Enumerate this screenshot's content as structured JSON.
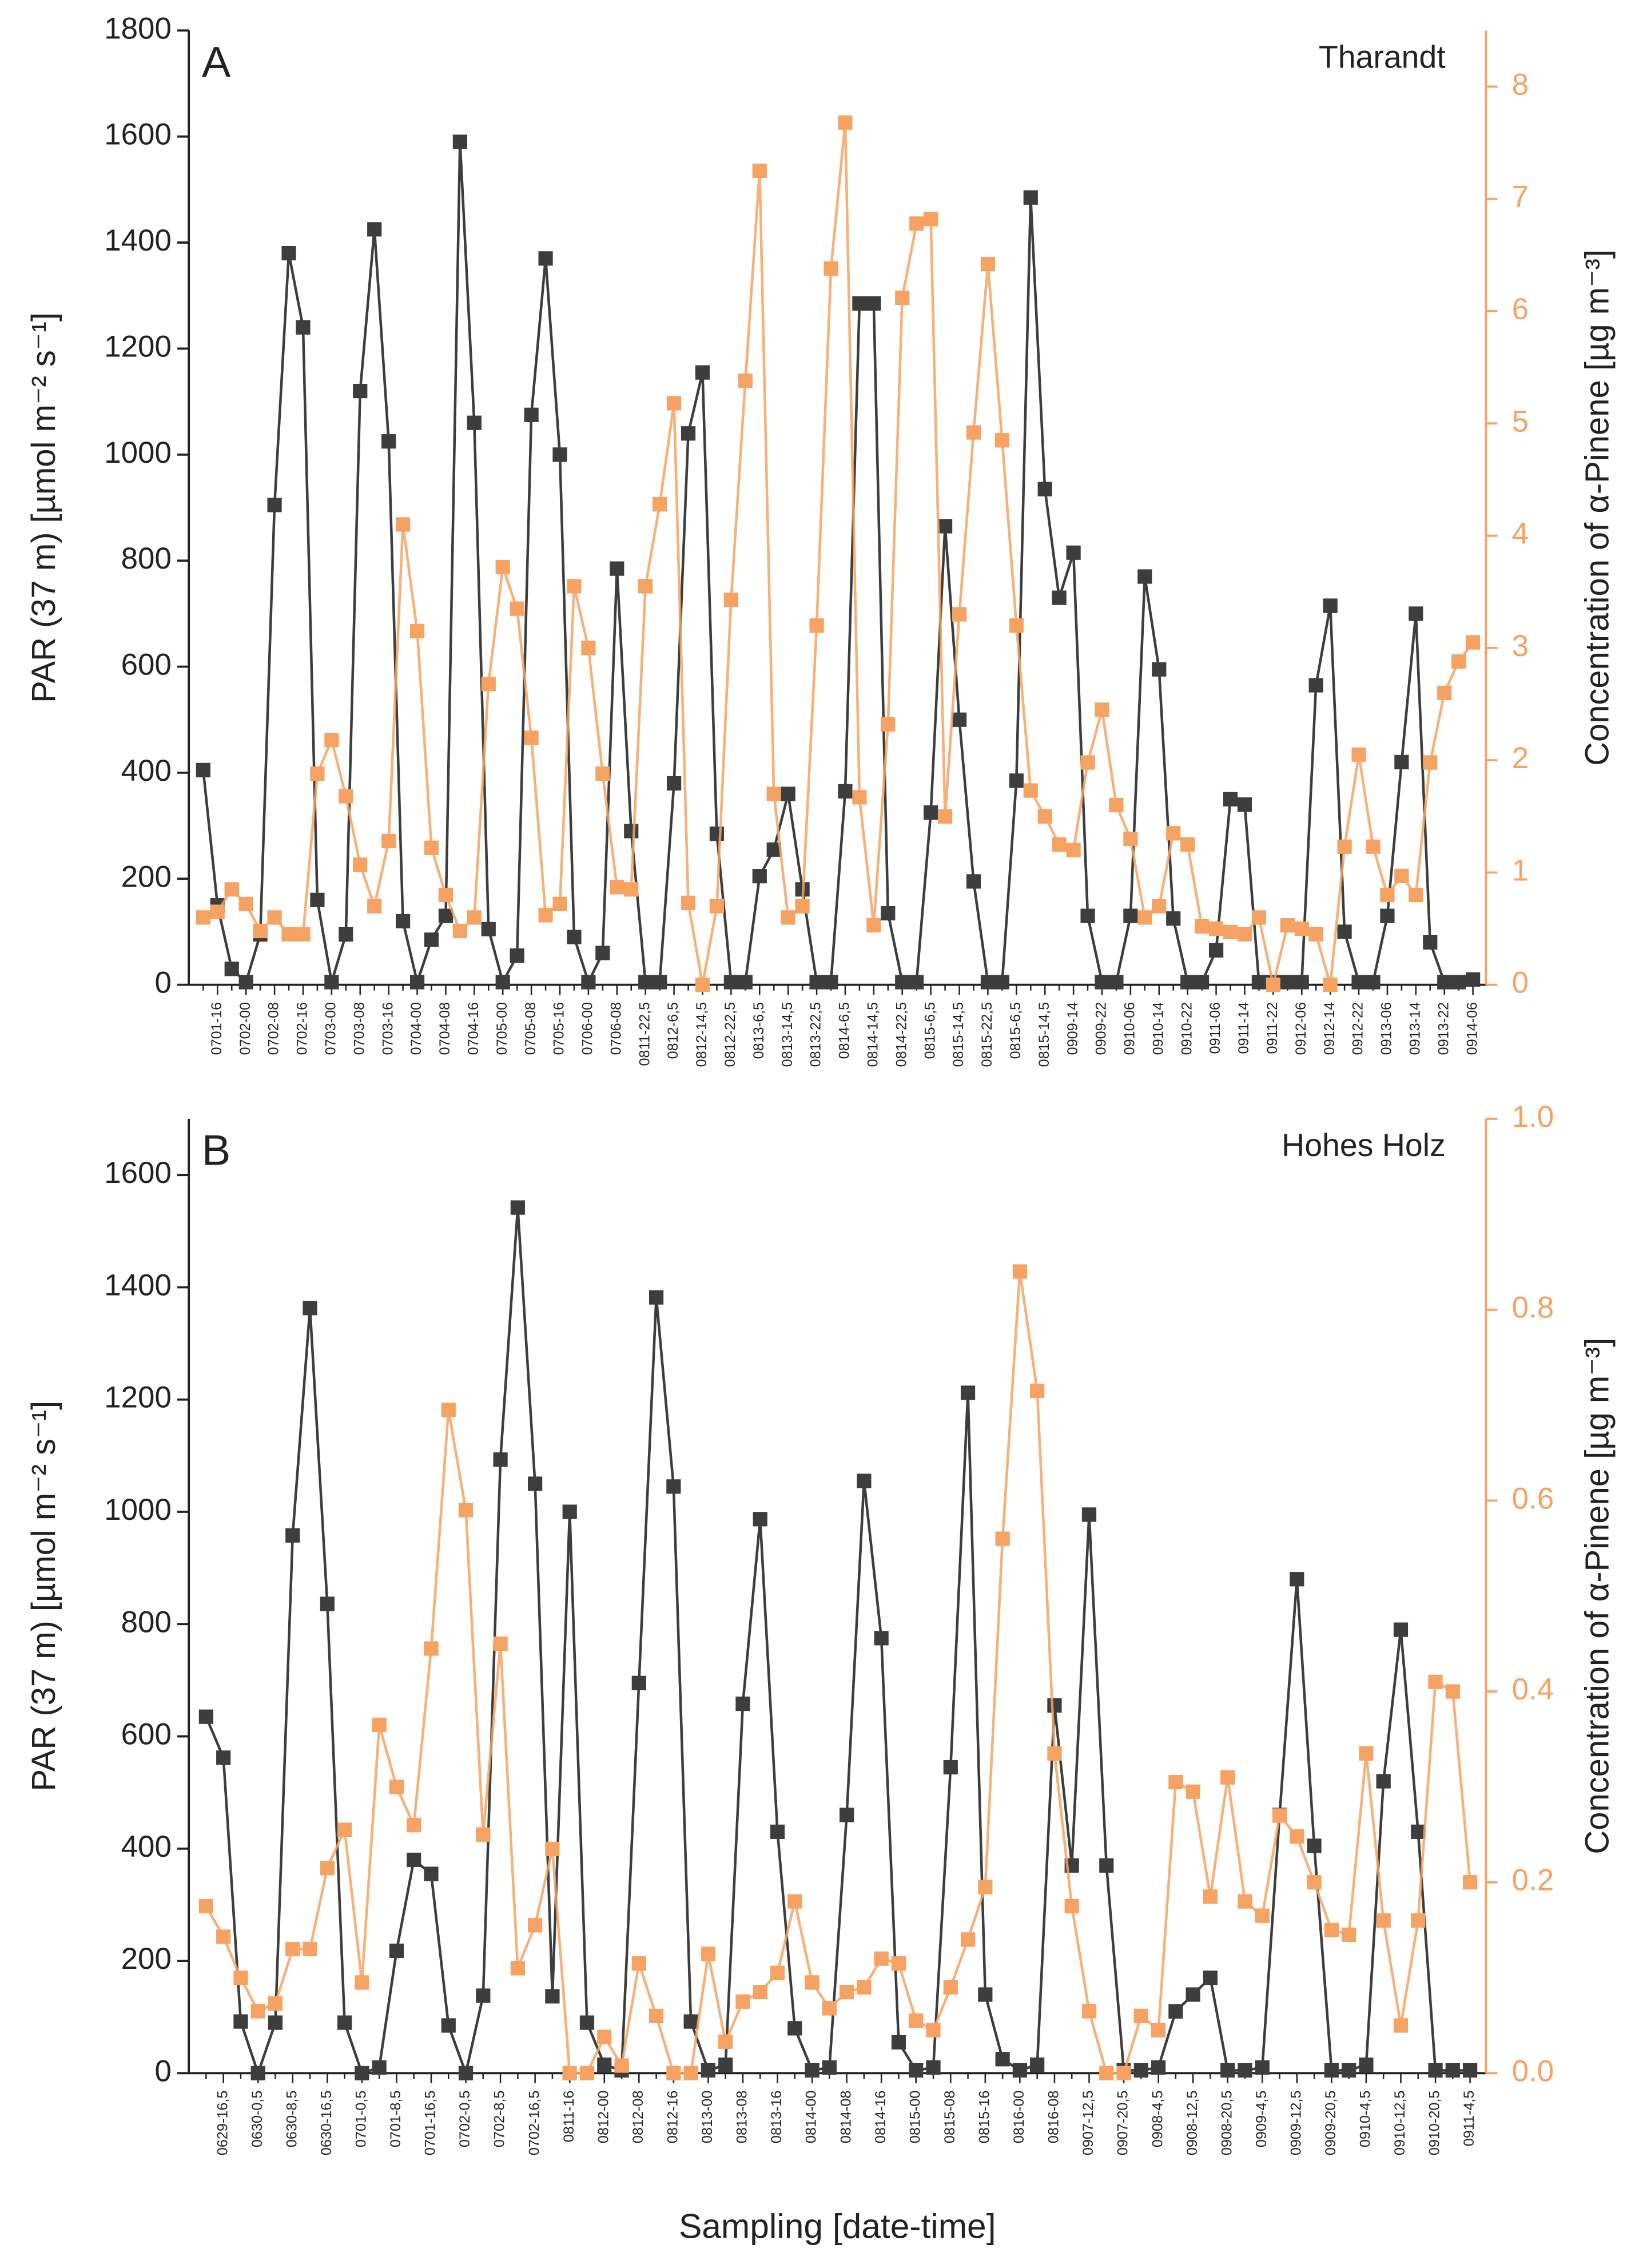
{
  "chart_data": [
    {
      "type": "line",
      "panel": "A",
      "title": "Tharandt",
      "ylabel": "PAR (37 m) [µmol m⁻² s⁻¹]",
      "y2label": "Concentration of α-Pinene [µg m⁻³]",
      "categories": [
        null,
        "0701-16",
        null,
        "0702-00",
        null,
        "0702-08",
        null,
        "0702-16",
        null,
        "0703-00",
        null,
        "0703-08",
        null,
        "0703-16",
        null,
        "0704-00",
        null,
        "0704-08",
        null,
        "0704-16",
        null,
        "0705-00",
        null,
        "0705-08",
        null,
        "0705-16",
        null,
        "0706-00",
        null,
        "0706-08",
        null,
        "0811-22,5",
        null,
        "0812-6,5",
        null,
        "0812-14,5",
        null,
        "0812-22,5",
        null,
        "0813-6,5",
        null,
        "0813-14,5",
        null,
        "0813-22,5",
        null,
        "0814-6,5",
        null,
        "0814-14,5",
        null,
        "0814-22,5",
        null,
        "0815-6,5",
        null,
        "0815-14,5",
        null,
        "0815-22,5",
        null,
        "0815-6,5",
        null,
        "0815-14,5",
        null,
        "0909-14",
        null,
        "0909-22",
        null,
        "0910-06",
        null,
        "0910-14",
        null,
        "0910-22",
        null,
        "0911-06",
        null,
        "0911-14",
        null,
        "0911-22",
        null,
        "0912-06",
        null,
        "0912-14",
        null,
        "0912-22",
        null,
        "0913-06",
        null,
        "0913-14",
        null,
        "0913-22",
        null,
        "0914-06"
      ],
      "series": [
        {
          "color": "#3d3d3d",
          "values": [
            405,
            150,
            30,
            5,
            95,
            905,
            1380,
            1240,
            160,
            5,
            95,
            1120,
            1425,
            1025,
            120,
            5,
            85,
            130,
            1590,
            1060,
            105,
            5,
            55,
            1075,
            1370,
            1000,
            90,
            5,
            60,
            785,
            290,
            5,
            5,
            380,
            1040,
            1155,
            285,
            5,
            5,
            205,
            255,
            360,
            180,
            5,
            5,
            365,
            1285,
            1285,
            135,
            5,
            5,
            325,
            865,
            500,
            195,
            5,
            5,
            385,
            1485,
            935,
            730,
            815,
            130,
            5,
            5,
            130,
            770,
            595,
            125,
            5,
            5,
            65,
            350,
            340,
            5,
            5,
            5,
            5,
            565,
            715,
            100,
            5,
            5,
            130,
            420,
            700,
            80,
            5,
            5,
            10
          ]
        },
        {
          "color": "#f5a262",
          "axis": "y2",
          "values": [
            0.6,
            0.65,
            0.85,
            0.72,
            0.48,
            0.6,
            0.45,
            0.45,
            1.88,
            2.18,
            1.68,
            1.07,
            0.7,
            1.28,
            4.1,
            3.15,
            1.22,
            0.8,
            0.48,
            0.6,
            2.68,
            3.72,
            3.35,
            2.2,
            0.62,
            0.72,
            3.55,
            3.0,
            1.88,
            0.87,
            0.85,
            3.55,
            4.28,
            5.18,
            0.73,
            0.0,
            0.7,
            3.43,
            5.38,
            7.25,
            1.7,
            0.6,
            0.7,
            3.2,
            6.38,
            7.68,
            1.67,
            0.53,
            2.32,
            6.12,
            6.78,
            6.82,
            1.5,
            3.3,
            4.92,
            6.42,
            4.85,
            3.2,
            1.73,
            1.5,
            1.25,
            1.2,
            1.98,
            2.45,
            1.6,
            1.3,
            0.6,
            0.7,
            1.35,
            1.25,
            0.52,
            0.5,
            0.47,
            0.45,
            0.6,
            0.0,
            0.53,
            0.5,
            0.45,
            0.0,
            1.23,
            2.05,
            1.23,
            0.8,
            0.97,
            0.8,
            1.98,
            2.6,
            2.88,
            3.05
          ]
        }
      ],
      "ylim": [
        0,
        1800
      ],
      "yticks": [
        0,
        200,
        400,
        600,
        800,
        1000,
        1200,
        1400,
        1600,
        1800
      ],
      "y2lim": [
        0,
        8.5
      ],
      "y2ticks": [
        0,
        1,
        2,
        3,
        4,
        5,
        6,
        7,
        8
      ],
      "grid": false
    },
    {
      "type": "line",
      "panel": "B",
      "title": "Hohes Holz",
      "ylabel": "PAR (37 m) [µmol m⁻² s⁻¹]",
      "y2label": "Concentration of α-Pinene [µg m⁻³]",
      "xlabel": "Sampling [date-time]",
      "categories": [
        null,
        "0629-16,5",
        null,
        "0630-0,5",
        null,
        "0630-8,5",
        null,
        "0630-16,5",
        null,
        "0701-0,5",
        null,
        "0701-8,5",
        null,
        "0701-16,5",
        null,
        "0702-0,5",
        null,
        "0702-8,5",
        null,
        "0702-16,5",
        null,
        "0811-16",
        null,
        "0812-00",
        null,
        "0812-08",
        null,
        "0812-16",
        null,
        "0813-00",
        null,
        "0813-08",
        null,
        "0813-16",
        null,
        "0814-00",
        null,
        "0814-08",
        null,
        "0814-16",
        null,
        "0815-00",
        null,
        "0815-08",
        null,
        "0815-16",
        null,
        "0816-00",
        null,
        "0816-08",
        null,
        "0907-12,5",
        null,
        "0907-20,5",
        null,
        "0908-4,5",
        null,
        "0908-12,5",
        null,
        "0908-20,5",
        null,
        "0909-4,5",
        null,
        "0909-12,5",
        null,
        "0909-20,5",
        null,
        "0910-4,5",
        null,
        "0910-12,5",
        null,
        "0910-20,5",
        null,
        "0911-4,5"
      ],
      "series": [
        {
          "color": "#3d3d3d",
          "values": [
            635,
            562,
            92,
            0,
            90,
            958,
            1363,
            836,
            90,
            0,
            10,
            218,
            380,
            355,
            85,
            0,
            138,
            1093,
            1542,
            1050,
            137,
            1000,
            90,
            15,
            5,
            695,
            1382,
            1045,
            92,
            5,
            15,
            658,
            987,
            430,
            80,
            5,
            10,
            460,
            1055,
            775,
            55,
            5,
            10,
            545,
            1212,
            140,
            25,
            5,
            15,
            655,
            370,
            995,
            370,
            5,
            5,
            10,
            110,
            140,
            170,
            5,
            5,
            10,
            460,
            880,
            405,
            5,
            5,
            15,
            520,
            790,
            430,
            5,
            5,
            5
          ]
        },
        {
          "color": "#f5a262",
          "axis": "y2",
          "values": [
            0.175,
            0.143,
            0.1,
            0.065,
            0.073,
            0.13,
            0.13,
            0.215,
            0.255,
            0.095,
            0.365,
            0.3,
            0.26,
            0.445,
            0.695,
            0.59,
            0.25,
            0.45,
            0.11,
            0.155,
            0.235,
            0.0,
            0.0,
            0.038,
            0.008,
            0.115,
            0.06,
            0.0,
            0.0,
            0.125,
            0.033,
            0.075,
            0.085,
            0.105,
            0.18,
            0.095,
            0.068,
            0.085,
            0.09,
            0.12,
            0.115,
            0.055,
            0.045,
            0.09,
            0.14,
            0.195,
            0.56,
            0.84,
            0.715,
            0.335,
            0.175,
            0.065,
            0.0,
            0.0,
            0.06,
            0.045,
            0.305,
            0.295,
            0.185,
            0.31,
            0.18,
            0.165,
            0.27,
            0.248,
            0.2,
            0.15,
            0.145,
            0.335,
            0.16,
            0.05,
            0.16,
            0.41,
            0.4,
            0.2
          ]
        }
      ],
      "ylim": [
        0,
        1700
      ],
      "yticks": [
        0,
        200,
        400,
        600,
        800,
        1000,
        1200,
        1400,
        1600
      ],
      "y2lim": [
        0,
        1
      ],
      "y2ticks": [
        {
          "value": 0,
          "label": "0.0"
        },
        0.2,
        0.4,
        0.6,
        0.8,
        {
          "value": 1,
          "label": "1.0"
        }
      ],
      "grid": false
    }
  ]
}
